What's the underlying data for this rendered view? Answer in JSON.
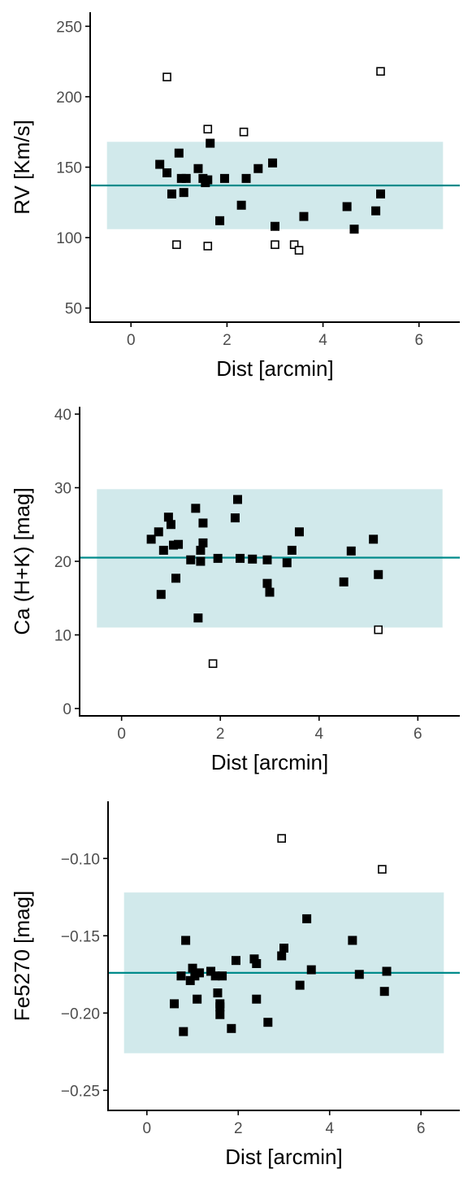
{
  "colors": {
    "band_fill": "#d1e9eb",
    "mean_line": "#008b8b",
    "marker": "#000000",
    "axis": "#000000",
    "tick_label": "#4d4d4d"
  },
  "chart_data": [
    {
      "type": "scatter",
      "xlabel": "Dist [arcmin]",
      "ylabel": "RV [Km/s]",
      "xlim": [
        -0.85,
        6.85
      ],
      "ylim": [
        40,
        260
      ],
      "xticks": [
        0,
        2,
        4,
        6
      ],
      "yticks": [
        50,
        100,
        150,
        200,
        250
      ],
      "grid": false,
      "mean": 137,
      "band": {
        "x": [
          -0.5,
          6.5
        ],
        "y": [
          106,
          168
        ]
      },
      "series": [
        {
          "marker": "filled-square",
          "points": [
            [
              0.6,
              152
            ],
            [
              0.75,
              146
            ],
            [
              0.85,
              131
            ],
            [
              1.0,
              160
            ],
            [
              1.05,
              142
            ],
            [
              1.1,
              132
            ],
            [
              1.15,
              142
            ],
            [
              1.4,
              149
            ],
            [
              1.5,
              142
            ],
            [
              1.55,
              139
            ],
            [
              1.6,
              141
            ],
            [
              1.65,
              167
            ],
            [
              1.85,
              112
            ],
            [
              1.95,
              142
            ],
            [
              2.3,
              123
            ],
            [
              2.4,
              142
            ],
            [
              2.65,
              149
            ],
            [
              2.95,
              153
            ],
            [
              3.0,
              108
            ],
            [
              3.6,
              115
            ],
            [
              4.5,
              122
            ],
            [
              4.65,
              106
            ],
            [
              5.1,
              119
            ],
            [
              5.2,
              131
            ]
          ]
        },
        {
          "marker": "open-square",
          "points": [
            [
              0.75,
              214
            ],
            [
              0.95,
              95
            ],
            [
              1.6,
              177
            ],
            [
              1.6,
              94
            ],
            [
              2.35,
              175
            ],
            [
              3.0,
              95
            ],
            [
              3.4,
              95
            ],
            [
              3.5,
              91
            ],
            [
              5.2,
              218
            ]
          ]
        }
      ]
    },
    {
      "type": "scatter",
      "xlabel": "Dist [arcmin]",
      "ylabel": "Ca (H+K) [mag]",
      "xlim": [
        -0.85,
        6.85
      ],
      "ylim": [
        -1,
        41
      ],
      "xticks": [
        0,
        2,
        4,
        6
      ],
      "yticks": [
        0,
        10,
        20,
        30,
        40
      ],
      "grid": false,
      "mean": 20.5,
      "band": {
        "x": [
          -0.5,
          6.5
        ],
        "y": [
          11,
          29.8
        ]
      },
      "series": [
        {
          "marker": "filled-square",
          "points": [
            [
              0.6,
              23
            ],
            [
              0.75,
              24
            ],
            [
              0.8,
              15.5
            ],
            [
              0.85,
              21.5
            ],
            [
              0.95,
              26
            ],
            [
              1.0,
              25
            ],
            [
              1.05,
              22.2
            ],
            [
              1.1,
              17.7
            ],
            [
              1.15,
              22.3
            ],
            [
              1.4,
              20.2
            ],
            [
              1.5,
              27.2
            ],
            [
              1.55,
              12.3
            ],
            [
              1.6,
              21.5
            ],
            [
              1.6,
              20
            ],
            [
              1.65,
              25.2
            ],
            [
              1.65,
              22.5
            ],
            [
              1.95,
              20.4
            ],
            [
              2.3,
              25.9
            ],
            [
              2.35,
              28.4
            ],
            [
              2.4,
              20.4
            ],
            [
              2.65,
              20.3
            ],
            [
              2.95,
              20.2
            ],
            [
              2.95,
              17
            ],
            [
              3.0,
              15.8
            ],
            [
              3.35,
              19.8
            ],
            [
              3.45,
              21.5
            ],
            [
              3.6,
              24
            ],
            [
              4.5,
              17.2
            ],
            [
              4.65,
              21.4
            ],
            [
              5.1,
              23
            ],
            [
              5.2,
              18.2
            ]
          ]
        },
        {
          "marker": "open-square",
          "points": [
            [
              1.85,
              6.1
            ],
            [
              5.2,
              10.7
            ]
          ]
        }
      ]
    },
    {
      "type": "scatter",
      "xlabel": "Dist [arcmin]",
      "ylabel": "Fe5270 [mag]",
      "xlim": [
        -0.85,
        6.85
      ],
      "ylim": [
        -0.263,
        -0.063
      ],
      "xticks": [
        0,
        2,
        4,
        6
      ],
      "yticks": [
        -0.25,
        -0.2,
        -0.15,
        -0.1
      ],
      "yticklabels": [
        "−0.25",
        "−0.20",
        "−0.15",
        "−0.10"
      ],
      "grid": false,
      "mean": -0.174,
      "band": {
        "x": [
          -0.5,
          6.5
        ],
        "y": [
          -0.226,
          -0.122
        ]
      },
      "series": [
        {
          "marker": "filled-square",
          "points": [
            [
              0.6,
              -0.194
            ],
            [
              0.75,
              -0.176
            ],
            [
              0.8,
              -0.212
            ],
            [
              0.85,
              -0.153
            ],
            [
              0.95,
              -0.179
            ],
            [
              1.0,
              -0.171
            ],
            [
              1.05,
              -0.176
            ],
            [
              1.1,
              -0.191
            ],
            [
              1.15,
              -0.174
            ],
            [
              1.4,
              -0.173
            ],
            [
              1.5,
              -0.176
            ],
            [
              1.55,
              -0.187
            ],
            [
              1.6,
              -0.194
            ],
            [
              1.6,
              -0.196
            ],
            [
              1.6,
              -0.201
            ],
            [
              1.65,
              -0.176
            ],
            [
              1.85,
              -0.21
            ],
            [
              1.95,
              -0.166
            ],
            [
              2.35,
              -0.165
            ],
            [
              2.4,
              -0.168
            ],
            [
              2.4,
              -0.191
            ],
            [
              2.65,
              -0.206
            ],
            [
              2.95,
              -0.163
            ],
            [
              3.0,
              -0.158
            ],
            [
              3.35,
              -0.182
            ],
            [
              3.5,
              -0.139
            ],
            [
              3.6,
              -0.172
            ],
            [
              4.5,
              -0.153
            ],
            [
              4.65,
              -0.175
            ],
            [
              5.2,
              -0.186
            ],
            [
              5.25,
              -0.173
            ]
          ]
        },
        {
          "marker": "open-square",
          "points": [
            [
              2.95,
              -0.087
            ],
            [
              5.15,
              -0.107
            ]
          ]
        }
      ]
    }
  ]
}
